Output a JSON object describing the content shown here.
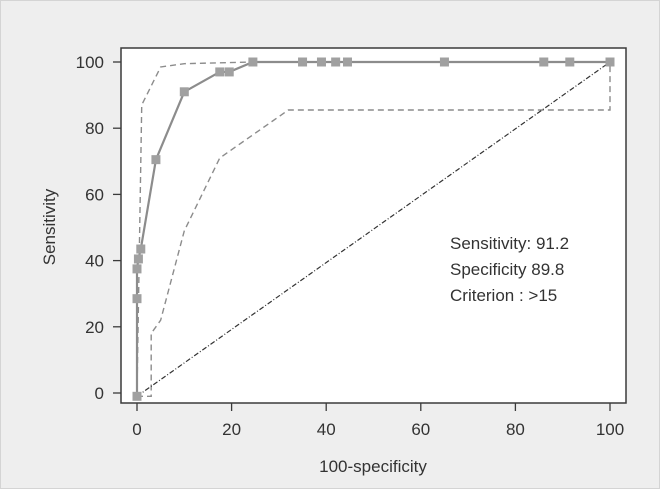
{
  "chart_data": {
    "type": "line",
    "title": "",
    "xlabel": "100-specificity",
    "ylabel": "Sensitivity",
    "xlim": [
      0,
      100
    ],
    "ylim": [
      -1,
      100
    ],
    "xticks": [
      0,
      20,
      40,
      60,
      80,
      100
    ],
    "yticks": [
      0,
      20,
      40,
      60,
      80,
      100
    ],
    "grid": false,
    "legend": "none",
    "colors": {
      "frame_bg": "#eeeeee",
      "plot_bg": "#ffffff",
      "roc": "#8c8c8c",
      "marker": "#a0a0a0",
      "ci": "#8c8c8c",
      "diagonal": "#333333"
    },
    "series": [
      {
        "style": "roc-curve",
        "x": [
          0,
          0,
          0,
          0.3,
          0.8,
          4,
          10,
          17.5,
          19.5,
          24.5,
          35,
          39,
          42,
          44.5,
          65,
          86,
          91.5,
          100
        ],
        "y": [
          -1,
          28.5,
          37.5,
          40.5,
          43.5,
          70.5,
          91,
          97,
          97,
          100,
          100,
          100,
          100,
          100,
          100,
          100,
          100,
          100
        ]
      },
      {
        "style": "upper-ci",
        "x": [
          0,
          1,
          5,
          10,
          24.5,
          100
        ],
        "y": [
          0,
          87,
          98.5,
          99.5,
          100,
          100
        ]
      },
      {
        "style": "lower-ci",
        "x": [
          0,
          3,
          3,
          5,
          10,
          17.5,
          32,
          100,
          100
        ],
        "y": [
          -1,
          -1,
          18,
          22,
          49,
          71,
          85.5,
          85.5,
          100
        ]
      },
      {
        "style": "reference-diagonal",
        "x": [
          0,
          100
        ],
        "y": [
          -1,
          100
        ]
      }
    ],
    "annotations": {
      "sensitivity": "Sensitivity: 91.2",
      "specificity": "Specificity 89.8",
      "criterion": "Criterion : >15"
    }
  }
}
